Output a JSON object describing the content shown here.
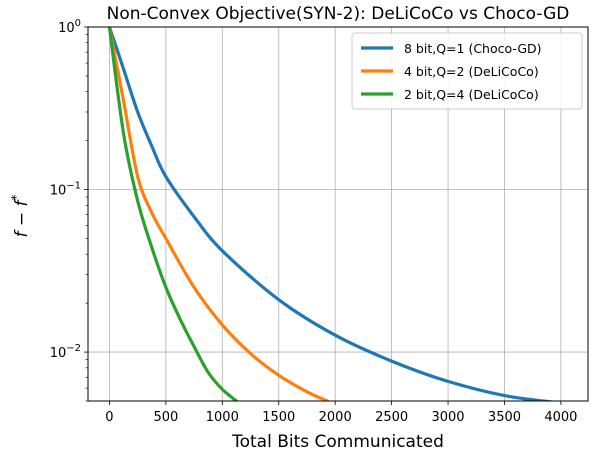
{
  "chart_data": {
    "type": "line",
    "title": "Non-Convex Objective(SYN-2): DeLiCoCo vs Choco-GD",
    "xlabel": "Total Bits Communicated",
    "ylabel": "f - f*",
    "yscale": "log",
    "xlim": [
      -190,
      4240
    ],
    "ylim": [
      0.005,
      1.0
    ],
    "grid": true,
    "legend_position": "top-right",
    "x_ticks": [
      0,
      500,
      1000,
      1500,
      2000,
      2500,
      3000,
      3500,
      4000
    ],
    "y_ticks": [
      {
        "value": 1.0,
        "base": "10",
        "exp": "0"
      },
      {
        "value": 0.1,
        "base": "10",
        "exp": "−1"
      },
      {
        "value": 0.01,
        "base": "10",
        "exp": "−2"
      }
    ],
    "series": [
      {
        "name": "8 bit,Q=1 (Choco-GD)",
        "color": "#1f77b4",
        "x": [
          0,
          125,
          250,
          375,
          500,
          750,
          1000,
          1500,
          2000,
          2500,
          3000,
          3500,
          3950
        ],
        "y": [
          1.0,
          0.55,
          0.3,
          0.185,
          0.12,
          0.068,
          0.042,
          0.021,
          0.0127,
          0.0088,
          0.0066,
          0.0054,
          0.0049
        ]
      },
      {
        "name": "4 bit,Q=2 (DeLiCoCo)",
        "color": "#ff7f0e",
        "x": [
          0,
          125,
          250,
          375,
          500,
          750,
          1000,
          1250,
          1500,
          1750,
          1930
        ],
        "y": [
          1.0,
          0.35,
          0.12,
          0.072,
          0.05,
          0.025,
          0.0147,
          0.0098,
          0.0072,
          0.0057,
          0.005
        ]
      },
      {
        "name": "2 bit,Q=4 (DeLiCoCo)",
        "color": "#2ca02c",
        "x": [
          0,
          125,
          250,
          375,
          500,
          625,
          750,
          875,
          1000,
          1125
        ],
        "y": [
          1.0,
          0.22,
          0.085,
          0.044,
          0.025,
          0.016,
          0.0108,
          0.0075,
          0.0059,
          0.005
        ]
      }
    ]
  }
}
